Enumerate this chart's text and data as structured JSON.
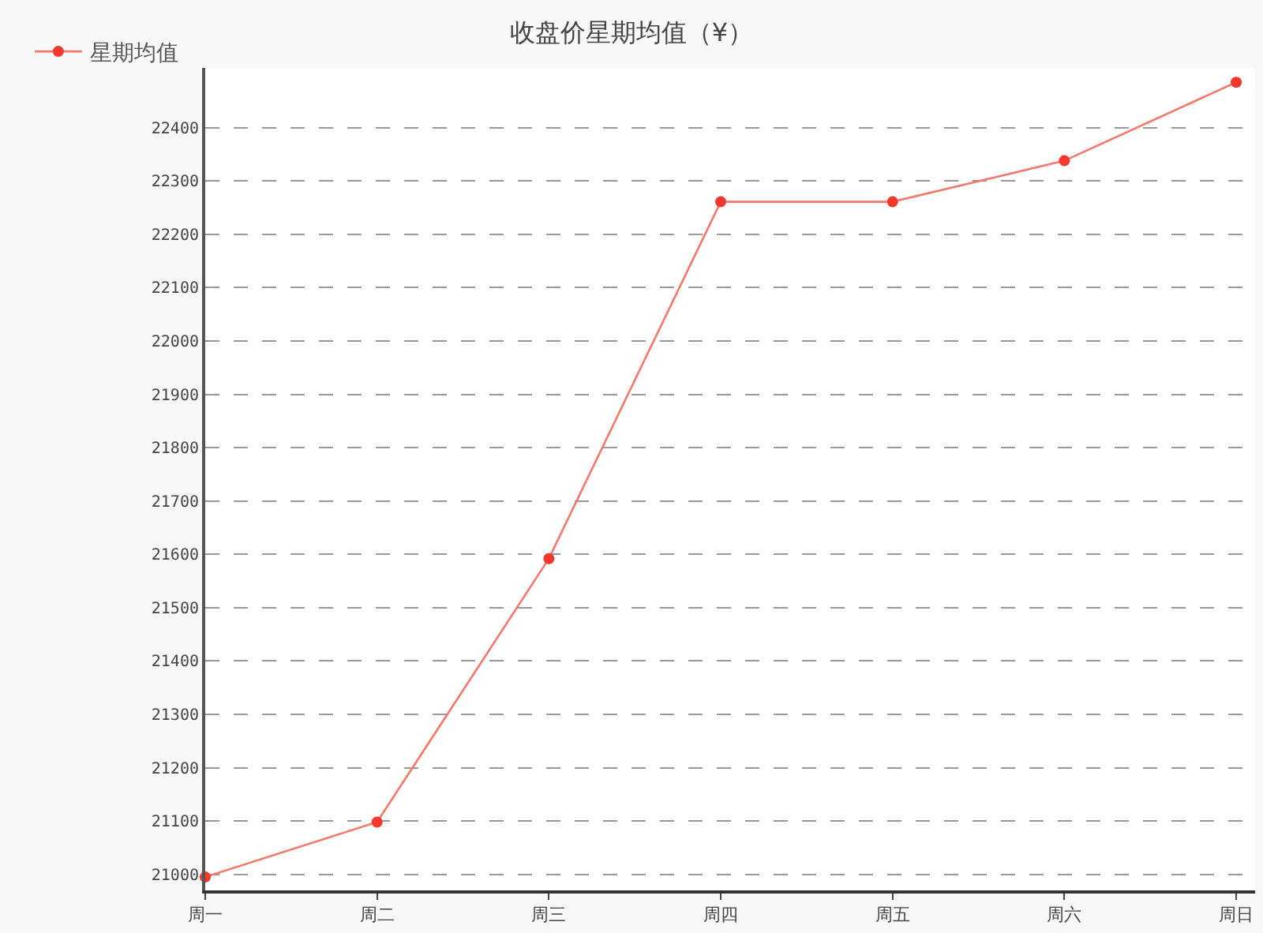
{
  "chart_data": {
    "type": "line",
    "title": "收盘价星期均值（¥）",
    "categories": [
      "周一",
      "周二",
      "周三",
      "周四",
      "周五",
      "周六",
      "周日"
    ],
    "series": [
      {
        "name": "星期均值",
        "color": "#f4786c",
        "values": [
          20995,
          21098,
          21592,
          22261,
          22261,
          22338,
          22485
        ]
      }
    ],
    "ylim": [
      20970,
      22512
    ],
    "yticks": [
      21000,
      21100,
      21200,
      21300,
      21400,
      21500,
      21600,
      21700,
      21800,
      21900,
      22000,
      22100,
      22200,
      22300,
      22400
    ],
    "grid": "y",
    "legend": "top left",
    "marker": "circle",
    "line_style": "solid"
  }
}
